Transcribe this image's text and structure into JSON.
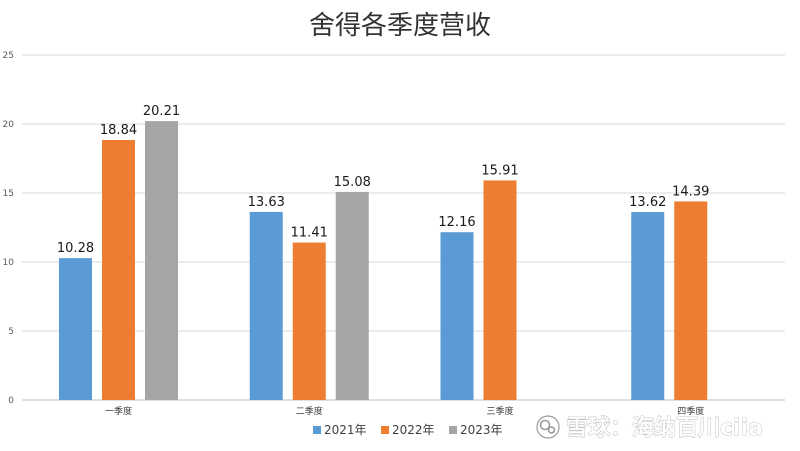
{
  "chart_data": {
    "type": "bar",
    "title": "舍得各季度营收",
    "categories": [
      "一季度",
      "二季度",
      "三季度",
      "四季度"
    ],
    "series": [
      {
        "name": "2021年",
        "color": "#5b9bd5",
        "values": [
          10.28,
          13.63,
          12.16,
          13.62
        ]
      },
      {
        "name": "2022年",
        "color": "#ed7d31",
        "values": [
          18.84,
          11.41,
          15.91,
          14.39
        ]
      },
      {
        "name": "2023年",
        "color": "#a5a5a5",
        "values": [
          20.21,
          15.08,
          null,
          null
        ]
      }
    ],
    "ylim": [
      0,
      25
    ],
    "yticks": [
      0,
      5,
      10,
      15,
      20,
      25
    ],
    "grid": true,
    "legend_position": "bottom"
  },
  "watermark": {
    "text": "雪球：海纳百川ciia",
    "icon": "snowball-logo-icon"
  }
}
